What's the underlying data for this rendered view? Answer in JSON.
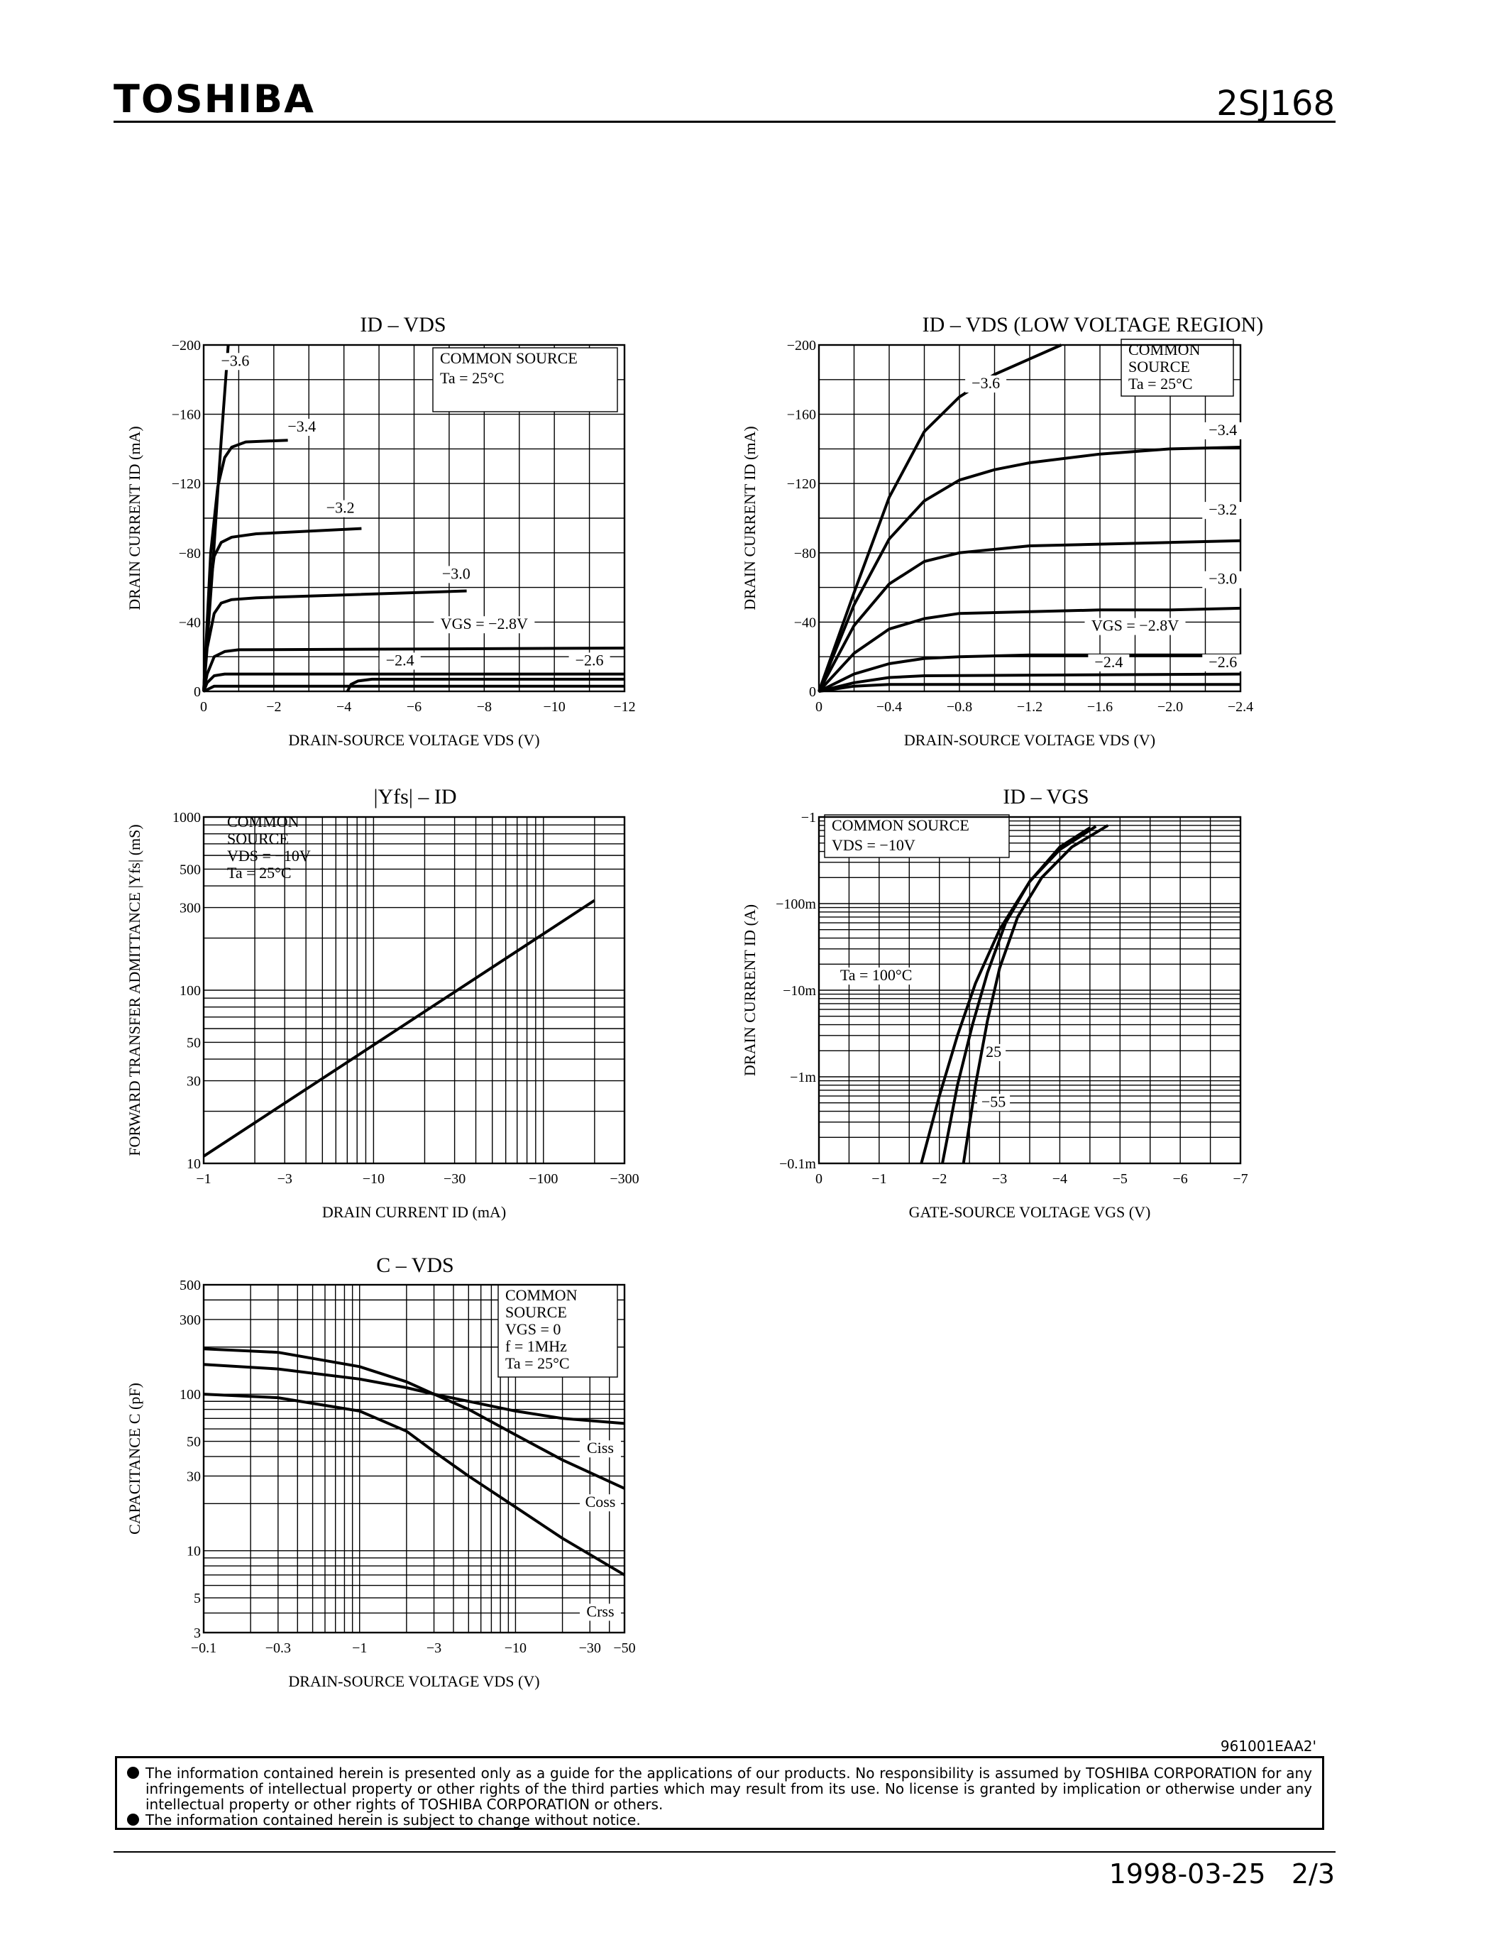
{
  "header": {
    "brand": "TOSHIBA",
    "part_number": "2SJ168"
  },
  "footer": {
    "doc_code": "961001EAA2'",
    "notices": [
      "The information contained herein is presented only as a guide for the applications of our products. No responsibility is assumed by TOSHIBA CORPORATION for any infringements of intellectual property or other rights of the third parties which may result from its use. No license is granted by implication or otherwise under any intellectual property or other rights of TOSHIBA CORPORATION or others.",
      "The information contained herein is subject to change without notice."
    ],
    "date": "1998-03-25",
    "page": "2/3"
  },
  "chart_data": [
    {
      "id": "c1",
      "type": "line",
      "title": "ID – VDS",
      "xlabel": "DRAIN-SOURCE VOLTAGE VDS (V)",
      "ylabel": "DRAIN CURRENT ID (mA)",
      "xlim": [
        0,
        -12
      ],
      "ylim": [
        0,
        -200
      ],
      "xticks": [
        0,
        -2,
        -4,
        -6,
        -8,
        -10,
        -12
      ],
      "xtick_labels": [
        "0",
        "−2",
        "−4",
        "−6",
        "−8",
        "−10",
        "−12"
      ],
      "yticks": [
        0,
        -40,
        -80,
        -120,
        -160,
        -200
      ],
      "ytick_labels": [
        "0",
        "−40",
        "−80",
        "−120",
        "−160",
        "−200"
      ],
      "annotation": [
        "COMMON SOURCE",
        "Ta = 25°C"
      ],
      "series": [
        {
          "name": "−3.6",
          "x": [
            0,
            -0.25,
            -0.5,
            -0.7
          ],
          "y": [
            0,
            -70,
            -145,
            -200
          ]
        },
        {
          "name": "−3.4",
          "x": [
            0,
            -0.2,
            -0.4,
            -0.6,
            -0.8,
            -1.2,
            -2.4
          ],
          "y": [
            0,
            -80,
            -118,
            -135,
            -141,
            -144,
            -145
          ]
        },
        {
          "name": "−3.2",
          "x": [
            0,
            -0.15,
            -0.3,
            -0.5,
            -0.8,
            -1.5,
            -4.5
          ],
          "y": [
            0,
            -55,
            -78,
            -86,
            -89,
            -91,
            -94
          ]
        },
        {
          "name": "−3.0",
          "x": [
            0,
            -0.1,
            -0.3,
            -0.5,
            -0.8,
            -1.5,
            -7.5
          ],
          "y": [
            0,
            -25,
            -45,
            -51,
            -53,
            -54,
            -58
          ]
        },
        {
          "name": "VGS = −2.8V",
          "x": [
            0,
            -0.1,
            -0.3,
            -0.6,
            -1.0,
            -12
          ],
          "y": [
            0,
            -10,
            -20,
            -23,
            -24,
            -25
          ]
        },
        {
          "name": "−2.6",
          "x": [
            0,
            -0.1,
            -0.3,
            -0.6,
            -12
          ],
          "y": [
            0,
            -5,
            -9,
            -10,
            -10
          ]
        },
        {
          "name": "−2.4",
          "x": [
            -4.1,
            -4.2,
            -4.4,
            -4.8,
            -12
          ],
          "y": [
            0,
            -4,
            -6,
            -7,
            -7
          ]
        },
        {
          "name": "",
          "x": [
            0,
            -0.3,
            -12
          ],
          "y": [
            0,
            -3,
            -3
          ]
        }
      ]
    },
    {
      "id": "c2",
      "type": "line",
      "title": "ID – VDS (LOW VOLTAGE REGION)",
      "xlabel": "DRAIN-SOURCE VOLTAGE VDS (V)",
      "ylabel": "DRAIN CURRENT ID (mA)",
      "xlim": [
        0,
        -2.4
      ],
      "ylim": [
        0,
        -200
      ],
      "xticks": [
        0,
        -0.4,
        -0.8,
        -1.2,
        -1.6,
        -2.0,
        -2.4
      ],
      "xtick_labels": [
        "0",
        "−0.4",
        "−0.8",
        "−1.2",
        "−1.6",
        "−2.0",
        "−2.4"
      ],
      "yticks": [
        0,
        -40,
        -80,
        -120,
        -160,
        -200
      ],
      "ytick_labels": [
        "0",
        "−40",
        "−80",
        "−120",
        "−160",
        "−200"
      ],
      "annotation": [
        "COMMON",
        "SOURCE",
        "Ta = 25°C"
      ],
      "series": [
        {
          "name": "−3.6",
          "x": [
            0,
            -0.2,
            -0.4,
            -0.6,
            -0.8,
            -1.0,
            -1.38
          ],
          "y": [
            0,
            -57,
            -112,
            -150,
            -170,
            -183,
            -200
          ]
        },
        {
          "name": "−3.4",
          "x": [
            0,
            -0.2,
            -0.4,
            -0.6,
            -0.8,
            -1.0,
            -1.2,
            -1.6,
            -2.0,
            -2.4
          ],
          "y": [
            0,
            -50,
            -88,
            -110,
            -122,
            -128,
            -132,
            -137,
            -140,
            -141
          ]
        },
        {
          "name": "−3.2",
          "x": [
            0,
            -0.2,
            -0.4,
            -0.6,
            -0.8,
            -1.2,
            -1.6,
            -2.0,
            -2.4
          ],
          "y": [
            0,
            -38,
            -62,
            -75,
            -80,
            -84,
            -85,
            -86,
            -87
          ]
        },
        {
          "name": "−3.0",
          "x": [
            0,
            -0.2,
            -0.4,
            -0.6,
            -0.8,
            -1.2,
            -1.6,
            -2.0,
            -2.4
          ],
          "y": [
            0,
            -22,
            -36,
            -42,
            -45,
            -46,
            -47,
            -47,
            -48
          ]
        },
        {
          "name": "VGS = −2.8V",
          "x": [
            0,
            -0.2,
            -0.4,
            -0.6,
            -0.8,
            -1.2,
            -2.4
          ],
          "y": [
            0,
            -10,
            -16,
            -19,
            -20,
            -21,
            -21
          ]
        },
        {
          "name": "−2.6",
          "x": [
            0,
            -0.2,
            -0.4,
            -0.6,
            -2.4
          ],
          "y": [
            0,
            -5,
            -8,
            -9,
            -10
          ]
        },
        {
          "name": "−2.4",
          "x": [
            0,
            -0.2,
            -0.4,
            -2.4
          ],
          "y": [
            0,
            -3,
            -4,
            -4
          ]
        }
      ]
    },
    {
      "id": "c3",
      "type": "line",
      "title": "|Yfs| – ID",
      "xlabel": "DRAIN CURRENT ID (mA)",
      "ylabel": "FORWARD TRANSFER ADMITTANCE |Yfs| (mS)",
      "xscale": "log",
      "yscale": "log",
      "xlim": [
        -1,
        -300
      ],
      "ylim": [
        10,
        1000
      ],
      "xticks": [
        -1,
        -3,
        -10,
        -30,
        -100,
        -300
      ],
      "xtick_labels": [
        "−1",
        "−3",
        "−10",
        "−30",
        "−100",
        "−300"
      ],
      "yticks": [
        10,
        30,
        50,
        100,
        300,
        500,
        1000
      ],
      "ytick_labels": [
        "10",
        "30",
        "50",
        "100",
        "300",
        "500",
        "1000"
      ],
      "annotation": [
        "COMMON",
        "SOURCE",
        "VDS = −10V",
        "Ta = 25°C"
      ],
      "series": [
        {
          "name": "",
          "x": [
            -1,
            -200
          ],
          "y": [
            11,
            330
          ]
        }
      ]
    },
    {
      "id": "c4",
      "type": "line",
      "title": "ID – VGS",
      "xlabel": "GATE-SOURCE VOLTAGE VGS (V)",
      "ylabel": "DRAIN CURRENT ID (A)",
      "yscale": "log",
      "xlim": [
        0,
        -7
      ],
      "ylim": [
        0.0001,
        1
      ],
      "xticks": [
        0,
        -1,
        -2,
        -3,
        -4,
        -5,
        -6,
        -7
      ],
      "xtick_labels": [
        "0",
        "−1",
        "−2",
        "−3",
        "−4",
        "−5",
        "−6",
        "−7"
      ],
      "yticks": [
        0.0001,
        0.001,
        0.01,
        0.1,
        1
      ],
      "ytick_labels": [
        "−0.1m",
        "−1m",
        "−10m",
        "−100m",
        "−1"
      ],
      "annotation": [
        "COMMON SOURCE",
        "VDS = −10V"
      ],
      "series": [
        {
          "name": "Ta = 100°C",
          "x": [
            -1.7,
            -2.0,
            -2.3,
            -2.6,
            -3.0,
            -3.5,
            -4.0,
            -4.5
          ],
          "y": [
            0.0001,
            0.0006,
            0.003,
            0.012,
            0.05,
            0.18,
            0.45,
            0.75
          ]
        },
        {
          "name": "25",
          "x": [
            -2.05,
            -2.3,
            -2.55,
            -2.8,
            -3.1,
            -3.5,
            -4.0,
            -4.6
          ],
          "y": [
            0.0001,
            0.0008,
            0.004,
            0.016,
            0.06,
            0.18,
            0.42,
            0.78
          ]
        },
        {
          "name": "−55",
          "x": [
            -2.4,
            -2.6,
            -2.8,
            -3.0,
            -3.3,
            -3.7,
            -4.2,
            -4.8
          ],
          "y": [
            0.0001,
            0.0008,
            0.0045,
            0.018,
            0.07,
            0.2,
            0.45,
            0.8
          ]
        }
      ]
    },
    {
      "id": "c5",
      "type": "line",
      "title": "C – VDS",
      "xlabel": "DRAIN-SOURCE VOLTAGE VDS (V)",
      "ylabel": "CAPACITANCE C (pF)",
      "xscale": "log",
      "yscale": "log",
      "xlim": [
        -0.1,
        -50
      ],
      "ylim": [
        3,
        500
      ],
      "xticks": [
        -0.1,
        -0.3,
        -1,
        -3,
        -10,
        -30,
        -50
      ],
      "xtick_labels": [
        "−0.1",
        "−0.3",
        "−1",
        "−3",
        "−10",
        "−30",
        "−50"
      ],
      "yticks": [
        3,
        5,
        10,
        30,
        50,
        100,
        300,
        500
      ],
      "ytick_labels": [
        "3",
        "5",
        "10",
        "30",
        "50",
        "100",
        "300",
        "500"
      ],
      "annotation": [
        "COMMON",
        "SOURCE",
        "VGS = 0",
        "f = 1MHz",
        "Ta = 25°C"
      ],
      "series": [
        {
          "name": "Ciss",
          "x": [
            -0.1,
            -0.3,
            -1,
            -2,
            -3,
            -5,
            -10,
            -20,
            -50
          ],
          "y": [
            155,
            145,
            125,
            110,
            100,
            90,
            78,
            70,
            65
          ]
        },
        {
          "name": "Coss",
          "x": [
            -0.1,
            -0.3,
            -1,
            -2,
            -3,
            -5,
            -10,
            -20,
            -50
          ],
          "y": [
            195,
            185,
            150,
            120,
            100,
            80,
            55,
            38,
            25
          ]
        },
        {
          "name": "Crss",
          "x": [
            -0.1,
            -0.3,
            -1,
            -2,
            -3,
            -5,
            -10,
            -20,
            -50
          ],
          "y": [
            100,
            95,
            78,
            58,
            43,
            30,
            19,
            12,
            7
          ]
        }
      ]
    }
  ]
}
